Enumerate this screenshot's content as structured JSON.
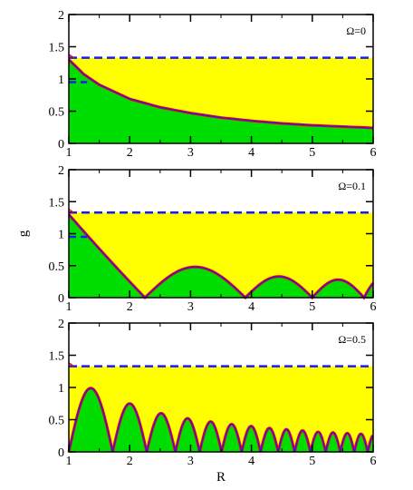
{
  "chart_data": [
    {
      "type": "area",
      "label": "Ω=0",
      "xlim": [
        1,
        6
      ],
      "ylim": [
        0,
        2
      ],
      "xticks": [
        "1",
        "2",
        "3",
        "4",
        "5",
        "6"
      ],
      "yticks": [
        "0",
        "0.5",
        "1",
        "1.5",
        "2"
      ],
      "xlabel": "",
      "ylabel": "",
      "omega": 0,
      "boundary": {
        "x": [
          1,
          1.25,
          1.5,
          2,
          2.5,
          3,
          3.5,
          4,
          4.5,
          5,
          5.5,
          6
        ],
        "y": [
          1.3,
          1.07,
          0.91,
          0.69,
          0.56,
          0.47,
          0.4,
          0.35,
          0.31,
          0.28,
          0.26,
          0.24
        ]
      },
      "dashed_line_y": 1.33,
      "dashed_short": {
        "x": [
          1,
          1.3
        ],
        "y": 0.95
      },
      "colors": {
        "lower": "#00dd00",
        "upper": "#ffff00",
        "dashed": "#1a1aff",
        "curve": "#ff0000",
        "curve_overlay": "#1a1aff"
      }
    },
    {
      "type": "area",
      "label": "Ω=0.1",
      "xlim": [
        1,
        6
      ],
      "ylim": [
        0,
        2
      ],
      "xticks": [
        "1",
        "2",
        "3",
        "4",
        "5",
        "6"
      ],
      "yticks": [
        "0",
        "0.5",
        "1",
        "1.5",
        "2"
      ],
      "xlabel": "",
      "ylabel": "g",
      "omega": 0.1,
      "boundary": {
        "x": [
          1,
          1.25,
          1.5,
          2,
          2.25,
          2.5,
          3,
          3.5,
          3.9,
          4.3,
          4.6,
          5,
          5.3,
          5.6,
          5.85,
          6
        ],
        "y": [
          1.3,
          1.07,
          0.85,
          0.35,
          0.0,
          0.3,
          0.48,
          0.3,
          0.0,
          0.26,
          0.33,
          0.0,
          0.22,
          0.28,
          0.0,
          0.12
        ]
      },
      "dashed_line_y": 1.33,
      "dashed_short": {
        "x": [
          1,
          1.3
        ],
        "y": 0.95
      },
      "colors": {
        "lower": "#00dd00",
        "upper": "#ffff00",
        "dashed": "#1a1aff",
        "curve": "#ff0000",
        "curve_overlay": "#1a1aff"
      }
    },
    {
      "type": "area",
      "label": "Ω=0.5",
      "xlim": [
        1,
        6
      ],
      "ylim": [
        0,
        2
      ],
      "xticks": [
        "1",
        "2",
        "3",
        "4",
        "5",
        "6"
      ],
      "yticks": [
        "0",
        "0.5",
        "1",
        "1.5",
        "2"
      ],
      "xlabel": "R",
      "ylabel": "",
      "omega": 0.5,
      "arches": {
        "zeros": [
          1.0,
          1.72,
          2.28,
          2.75,
          3.15,
          3.51,
          3.84,
          4.15,
          4.44,
          4.71,
          4.97,
          5.22,
          5.46,
          5.69,
          5.91
        ],
        "tail_zero": 6.12,
        "peaks": [
          0.99,
          0.75,
          0.6,
          0.52,
          0.47,
          0.43,
          0.4,
          0.37,
          0.35,
          0.33,
          0.31,
          0.3,
          0.29,
          0.28,
          0.27
        ],
        "tail_peak": 0.27
      },
      "dashed_line_y": 1.33,
      "colors": {
        "lower": "#00dd00",
        "upper": "#ffff00",
        "dashed": "#1a1aff",
        "curve": "#ff0000",
        "curve_overlay": "#1a1aff"
      }
    }
  ]
}
